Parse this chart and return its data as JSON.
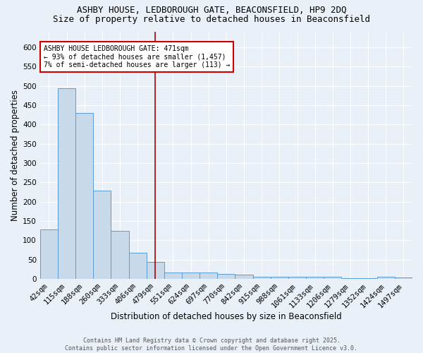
{
  "title1": "ASHBY HOUSE, LEDBOROUGH GATE, BEACONSFIELD, HP9 2DQ",
  "title2": "Size of property relative to detached houses in Beaconsfield",
  "xlabel": "Distribution of detached houses by size in Beaconsfield",
  "ylabel": "Number of detached properties",
  "categories": [
    "42sqm",
    "115sqm",
    "188sqm",
    "260sqm",
    "333sqm",
    "406sqm",
    "479sqm",
    "551sqm",
    "624sqm",
    "697sqm",
    "770sqm",
    "842sqm",
    "915sqm",
    "988sqm",
    "1061sqm",
    "1133sqm",
    "1206sqm",
    "1279sqm",
    "1352sqm",
    "1424sqm",
    "1497sqm"
  ],
  "values": [
    128,
    493,
    430,
    228,
    125,
    68,
    43,
    16,
    16,
    16,
    13,
    10,
    6,
    5,
    5,
    5,
    5,
    2,
    2,
    5,
    3
  ],
  "bar_color": "#c8d9ea",
  "bar_edge_color": "#5b9bd5",
  "red_line_index": 6,
  "annotation_text": "ASHBY HOUSE LEDBOROUGH GATE: 471sqm\n← 93% of detached houses are smaller (1,457)\n7% of semi-detached houses are larger (113) →",
  "annotation_box_color": "#ffffff",
  "annotation_box_edge": "#cc0000",
  "ylim": [
    0,
    640
  ],
  "yticks": [
    0,
    50,
    100,
    150,
    200,
    250,
    300,
    350,
    400,
    450,
    500,
    550,
    600
  ],
  "background_color": "#eaf0f8",
  "grid_color": "#ffffff",
  "footer_text": "Contains HM Land Registry data © Crown copyright and database right 2025.\nContains public sector information licensed under the Open Government Licence v3.0.",
  "title1_fontsize": 9,
  "title2_fontsize": 9,
  "axis_label_fontsize": 8.5,
  "tick_fontsize": 7.5,
  "annotation_fontsize": 7,
  "footer_fontsize": 6
}
